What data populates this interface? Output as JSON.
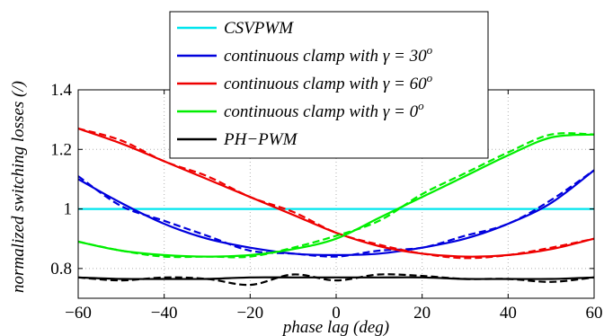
{
  "chart_data": {
    "type": "line",
    "xlabel": "phase lag (deg)",
    "ylabel": "normalized switching losses (/)",
    "xlim": [
      -60,
      60
    ],
    "ylim": [
      0.7,
      1.4
    ],
    "xticks": [
      -60,
      -40,
      -20,
      0,
      20,
      40,
      60
    ],
    "xtick_labels": [
      "−60",
      "−40",
      "−20",
      "0",
      "20",
      "40",
      "60"
    ],
    "yticks": [
      0.8,
      1.0,
      1.2,
      1.4
    ],
    "ytick_labels": [
      "0.8",
      "1",
      "1.2",
      "1.4"
    ],
    "grid": true,
    "legend_position": "top-center",
    "legend": [
      {
        "prefix": "CSVPWM",
        "gamma": "",
        "exp": "",
        "color": "#00e5ee"
      },
      {
        "prefix": "continuous clamp with ",
        "gamma": "γ = 30",
        "exp": "o",
        "color": "#0000dd"
      },
      {
        "prefix": "continuous clamp with ",
        "gamma": "γ = 60",
        "exp": "o",
        "color": "#ee0000"
      },
      {
        "prefix": "continuous clamp with ",
        "gamma": "γ = 0",
        "exp": "o",
        "color": "#00ee00"
      },
      {
        "prefix": "PH−PWM",
        "gamma": "",
        "exp": "",
        "color": "#000000"
      }
    ],
    "x": [
      -60,
      -50,
      -40,
      -30,
      -20,
      -10,
      0,
      10,
      20,
      30,
      40,
      50,
      60
    ],
    "series": [
      {
        "key": "csvpwm",
        "color": "#00e5ee",
        "values": [
          1.0,
          1.0,
          1.0,
          1.0,
          1.0,
          1.0,
          1.0,
          1.0,
          1.0,
          1.0,
          1.0,
          1.0,
          1.0
        ],
        "measured": null
      },
      {
        "key": "gamma30",
        "color": "#0000dd",
        "values": [
          1.1,
          1.02,
          0.95,
          0.9,
          0.87,
          0.85,
          0.845,
          0.85,
          0.87,
          0.9,
          0.95,
          1.02,
          1.13
        ],
        "measured": [
          1.11,
          1.01,
          0.96,
          0.91,
          0.86,
          0.85,
          0.84,
          0.86,
          0.87,
          0.91,
          0.95,
          1.03,
          1.13
        ]
      },
      {
        "key": "gamma60",
        "color": "#ee0000",
        "values": [
          1.27,
          1.22,
          1.16,
          1.1,
          1.04,
          0.98,
          0.92,
          0.875,
          0.85,
          0.84,
          0.845,
          0.865,
          0.9
        ],
        "measured": [
          1.27,
          1.23,
          1.16,
          1.11,
          1.04,
          0.99,
          0.92,
          0.88,
          0.85,
          0.835,
          0.845,
          0.87,
          0.9
        ]
      },
      {
        "key": "gamma0",
        "color": "#00ee00",
        "values": [
          0.89,
          0.86,
          0.845,
          0.84,
          0.845,
          0.865,
          0.9,
          0.97,
          1.04,
          1.11,
          1.18,
          1.24,
          1.25
        ],
        "measured": [
          0.89,
          0.86,
          0.84,
          0.84,
          0.84,
          0.87,
          0.91,
          0.96,
          1.05,
          1.12,
          1.19,
          1.25,
          1.25
        ]
      },
      {
        "key": "phpwm",
        "color": "#000000",
        "values": [
          0.77,
          0.765,
          0.765,
          0.765,
          0.77,
          0.77,
          0.77,
          0.77,
          0.77,
          0.765,
          0.765,
          0.765,
          0.77
        ],
        "measured": [
          0.77,
          0.76,
          0.77,
          0.765,
          0.745,
          0.78,
          0.76,
          0.78,
          0.775,
          0.765,
          0.765,
          0.755,
          0.77
        ]
      }
    ]
  }
}
